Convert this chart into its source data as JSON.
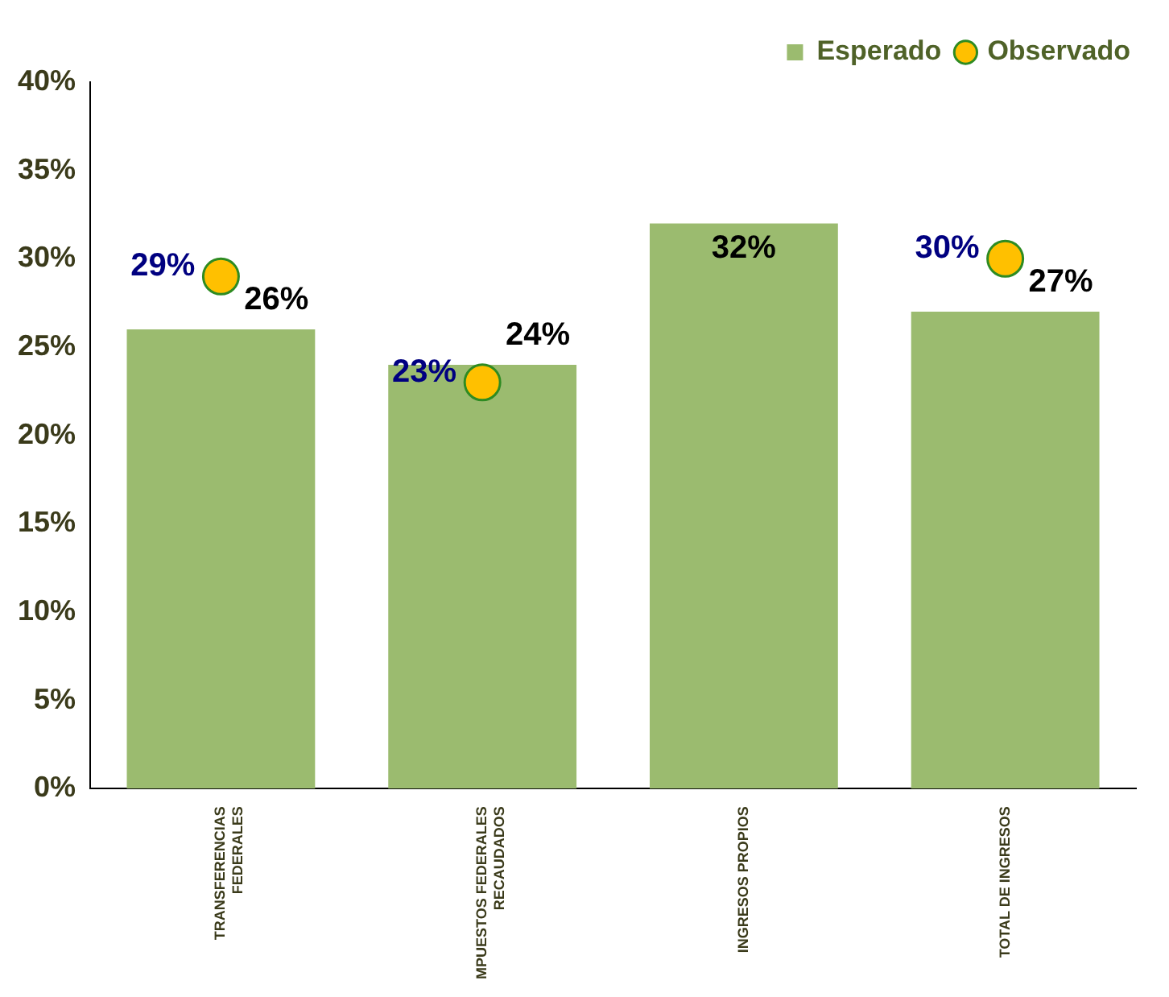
{
  "chart_data": {
    "type": "bar",
    "categories": [
      "TRANSFERENCIAS FEDERALES",
      "MPUESTOS FEDERALES RECAUDADOS",
      "INGRESOS PROPIOS",
      "TOTAL DE INGRESOS"
    ],
    "series": [
      {
        "name": "Esperado",
        "type": "bar",
        "color": "#9bbb6f",
        "values": [
          26,
          24,
          32,
          27
        ],
        "value_labels": [
          "26%",
          "24%",
          "32%",
          "27%"
        ]
      },
      {
        "name": "Observado",
        "type": "scatter",
        "color": "#ffc000",
        "values": [
          29,
          23,
          null,
          30
        ],
        "value_labels": [
          "29%",
          "23%",
          null,
          "30%"
        ]
      }
    ],
    "ylim": [
      0,
      40
    ],
    "yticks": [
      {
        "value": 0,
        "label": "0%"
      },
      {
        "value": 5,
        "label": "5%"
      },
      {
        "value": 10,
        "label": "10%"
      },
      {
        "value": 15,
        "label": "15%"
      },
      {
        "value": 20,
        "label": "20%"
      },
      {
        "value": 25,
        "label": "25%"
      },
      {
        "value": 30,
        "label": "30%"
      },
      {
        "value": 35,
        "label": "35%"
      },
      {
        "value": 40,
        "label": "40%"
      }
    ],
    "grid": false,
    "legend": "top right",
    "marker": "circle"
  }
}
